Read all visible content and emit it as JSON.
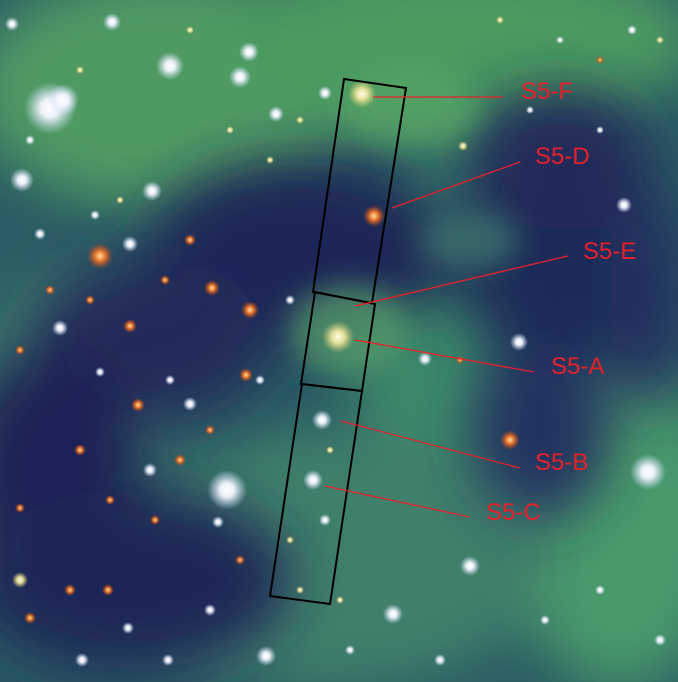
{
  "image": {
    "labels": [
      {
        "id": "S5-F",
        "text": "S5-F"
      },
      {
        "id": "S5-D",
        "text": "S5-D"
      },
      {
        "id": "S5-E",
        "text": "S5-E"
      },
      {
        "id": "S5-A",
        "text": "S5-A"
      },
      {
        "id": "S5-B",
        "text": "S5-B"
      },
      {
        "id": "S5-C",
        "text": "S5-C"
      }
    ],
    "colors": {
      "nebula_green": "#3f8a5a",
      "dust_dark": "#1e2452",
      "label_red": "#e8202a",
      "slit_outline": "#000000"
    }
  }
}
